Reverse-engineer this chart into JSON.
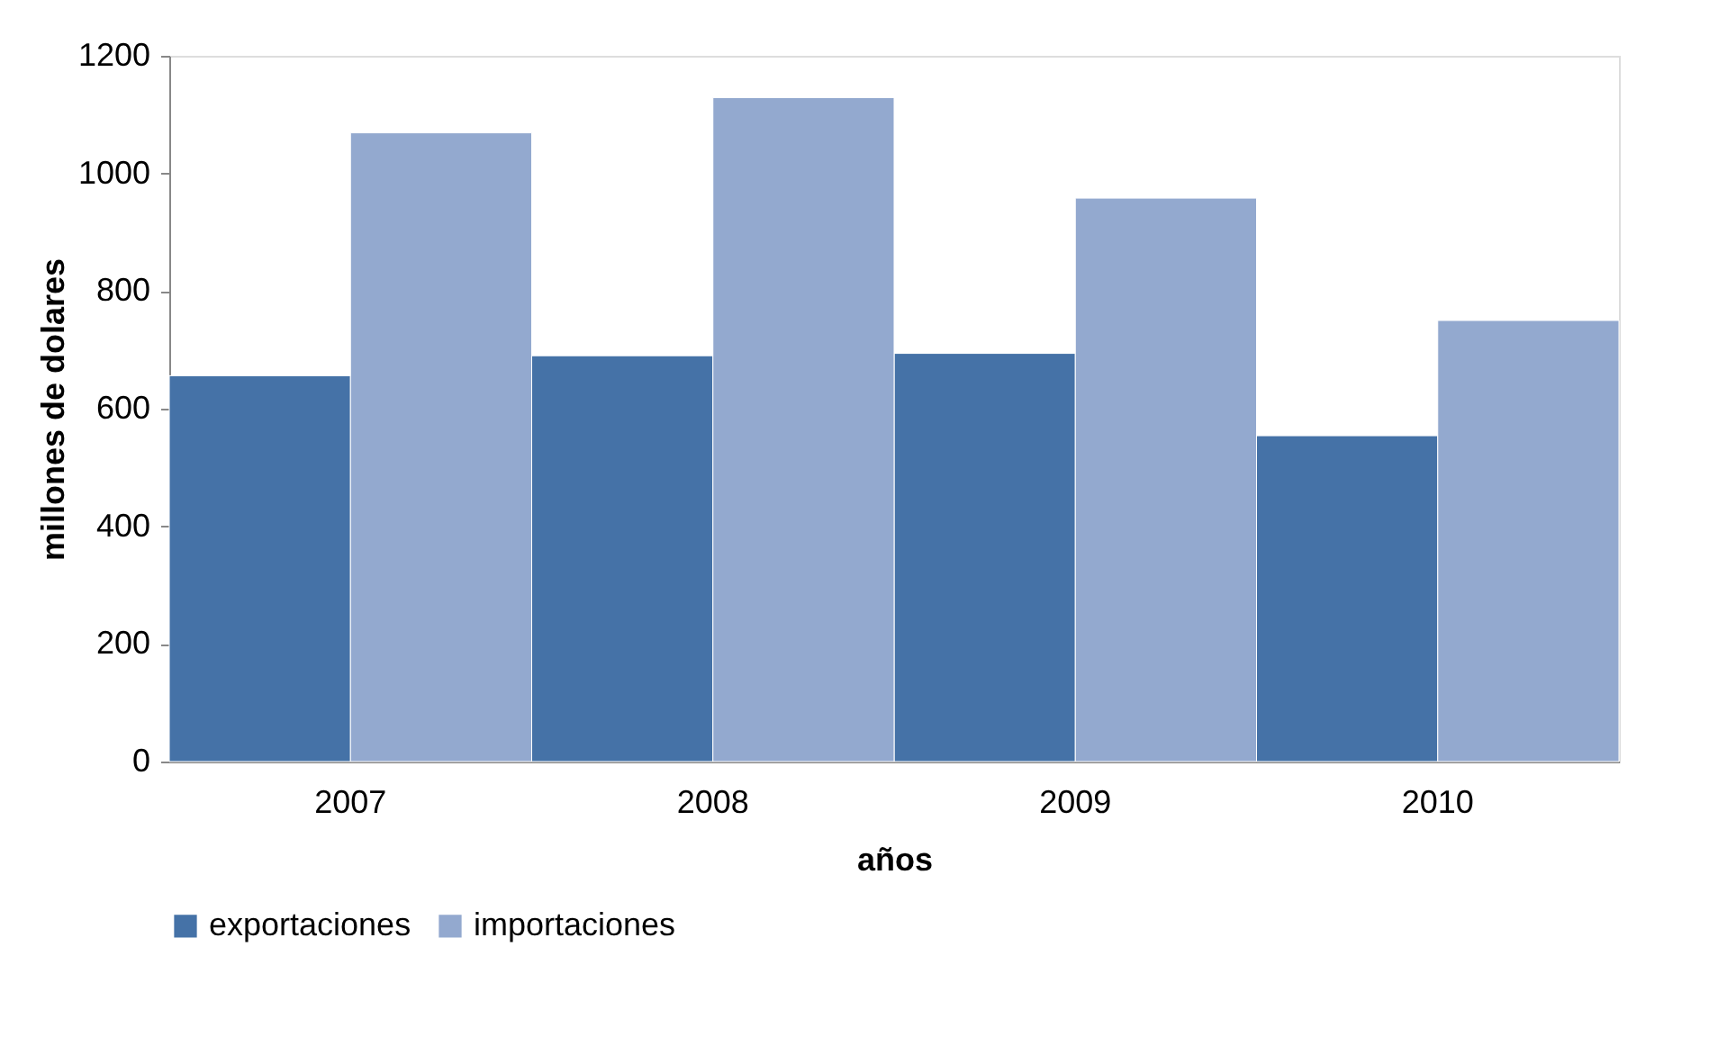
{
  "chart_data": {
    "type": "bar",
    "xlabel": "años",
    "ylabel": "millones de dolares",
    "categories": [
      "2007",
      "2008",
      "2009",
      "2010"
    ],
    "series": [
      {
        "name": "exportaciones",
        "color": "#4572a7",
        "values": [
          656,
          690,
          694,
          554
        ]
      },
      {
        "name": "importaciones",
        "color": "#93a9cf",
        "values": [
          1069,
          1129,
          958,
          750
        ]
      }
    ],
    "ylim": [
      0,
      1200
    ],
    "yticks": [
      0,
      200,
      400,
      600,
      800,
      1000,
      1200
    ],
    "grid": false,
    "legend": "bottom"
  }
}
